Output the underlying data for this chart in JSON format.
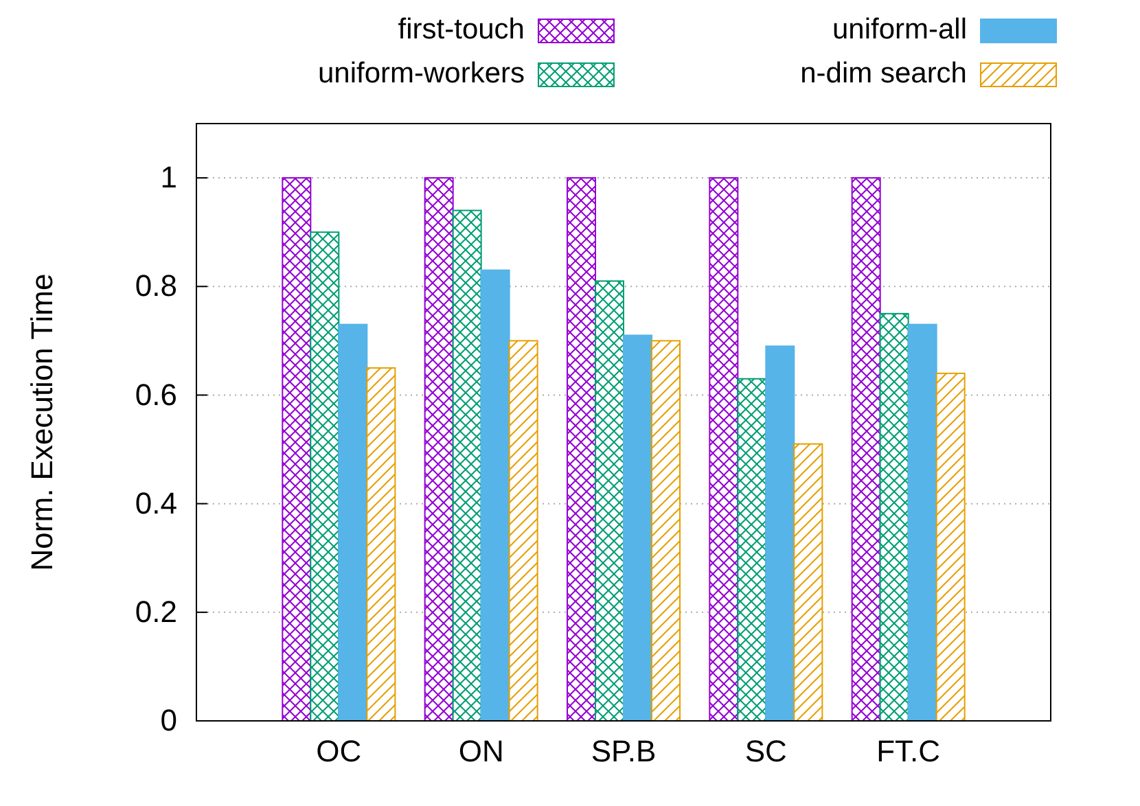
{
  "chart_data": {
    "type": "bar",
    "ylabel": "Norm. Execution Time",
    "categories": [
      "OC",
      "ON",
      "SP.B",
      "SC",
      "FT.C"
    ],
    "series": [
      {
        "name": "first-touch",
        "color": "#9400d3",
        "values": [
          1,
          1,
          1,
          1,
          1
        ]
      },
      {
        "name": "uniform-workers",
        "color": "#009e73",
        "values": [
          0.9,
          0.94,
          0.81,
          0.63,
          0.75
        ]
      },
      {
        "name": "uniform-all",
        "color": "#56b4e9",
        "values": [
          0.73,
          0.83,
          0.71,
          0.69,
          0.73
        ]
      },
      {
        "name": "n-dim search",
        "color": "#e69f00",
        "values": [
          0.65,
          0.7,
          0.7,
          0.51,
          0.64
        ]
      }
    ],
    "ylim": [
      0,
      1.1
    ],
    "yticks": [
      0,
      0.2,
      0.4,
      0.6,
      0.8,
      1
    ],
    "grid": "y",
    "legend": "top"
  }
}
